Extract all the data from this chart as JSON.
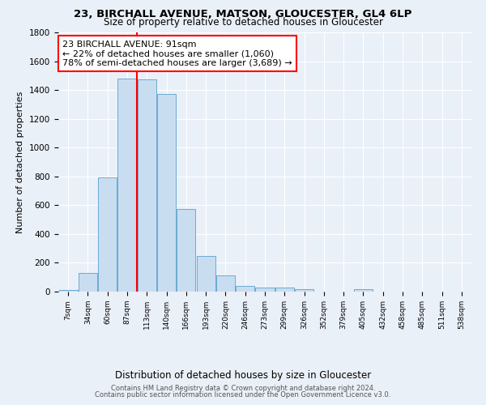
{
  "title": "23, BIRCHALL AVENUE, MATSON, GLOUCESTER, GL4 6LP",
  "subtitle": "Size of property relative to detached houses in Gloucester",
  "xlabel": "Distribution of detached houses by size in Gloucester",
  "ylabel": "Number of detached properties",
  "bar_color": "#c9ddf0",
  "bar_edge_color": "#6aaad4",
  "categories": [
    "7sqm",
    "34sqm",
    "60sqm",
    "87sqm",
    "113sqm",
    "140sqm",
    "166sqm",
    "193sqm",
    "220sqm",
    "246sqm",
    "273sqm",
    "299sqm",
    "326sqm",
    "352sqm",
    "379sqm",
    "405sqm",
    "432sqm",
    "458sqm",
    "485sqm",
    "511sqm",
    "538sqm"
  ],
  "values": [
    10,
    130,
    795,
    1480,
    1475,
    1370,
    575,
    250,
    110,
    38,
    30,
    30,
    18,
    0,
    0,
    18,
    0,
    0,
    0,
    0,
    0
  ],
  "vline_pos": 3.5,
  "annotation_text": "23 BIRCHALL AVENUE: 91sqm\n← 22% of detached houses are smaller (1,060)\n78% of semi-detached houses are larger (3,689) →",
  "ylim": [
    0,
    1800
  ],
  "yticks": [
    0,
    200,
    400,
    600,
    800,
    1000,
    1200,
    1400,
    1600,
    1800
  ],
  "footer1": "Contains HM Land Registry data © Crown copyright and database right 2024.",
  "footer2": "Contains public sector information licensed under the Open Government Licence v3.0.",
  "background_color": "#eaf0f8",
  "grid_color": "#ffffff",
  "vline_color": "red"
}
